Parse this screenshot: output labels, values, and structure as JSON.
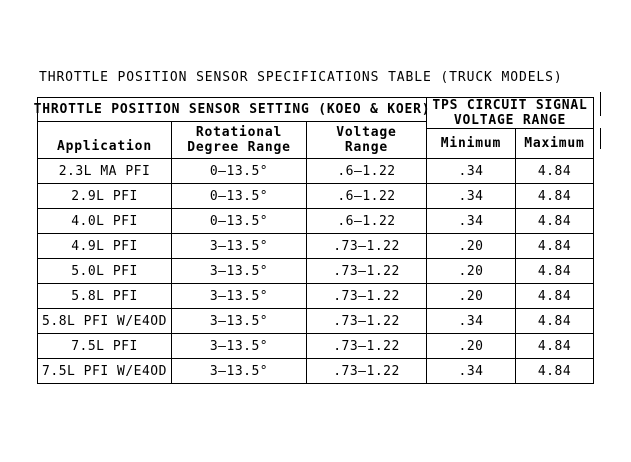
{
  "title": "THROTTLE POSITION SENSOR SPECIFICATIONS TABLE (TRUCK MODELS)",
  "table": {
    "section_headers": {
      "sensor_setting": "THROTTLE POSITION SENSOR SETTING (KOEO & KOER)",
      "tps_circuit": "TPS CIRCUIT SIGNAL\nVOLTAGE RANGE"
    },
    "column_headers": {
      "application": "Application",
      "rotational_degree_range": "Rotational\nDegree Range",
      "voltage_range": "Voltage\nRange",
      "minimum": "Minimum",
      "maximum": "Maximum"
    },
    "rows": [
      [
        "2.3L MA PFI",
        "0–13.5°",
        ".6–1.22",
        ".34",
        "4.84"
      ],
      [
        "2.9L PFI",
        "0–13.5°",
        ".6–1.22",
        ".34",
        "4.84"
      ],
      [
        "4.0L PFI",
        "0–13.5°",
        ".6–1.22",
        ".34",
        "4.84"
      ],
      [
        "4.9L PFI",
        "3–13.5°",
        ".73–1.22",
        ".20",
        "4.84"
      ],
      [
        "5.0L PFI",
        "3–13.5°",
        ".73–1.22",
        ".20",
        "4.84"
      ],
      [
        "5.8L PFI",
        "3–13.5°",
        ".73–1.22",
        ".20",
        "4.84"
      ],
      [
        "5.8L PFI W/E4OD",
        "3–13.5°",
        ".73–1.22",
        ".34",
        "4.84"
      ],
      [
        "7.5L PFI",
        "3–13.5°",
        ".73–1.22",
        ".20",
        "4.84"
      ],
      [
        "7.5L PFI W/E4OD",
        "3–13.5°",
        ".73–1.22",
        ".34",
        "4.84"
      ]
    ]
  },
  "colors": {
    "text": "#000000",
    "background": "#ffffff",
    "border": "#000000"
  }
}
